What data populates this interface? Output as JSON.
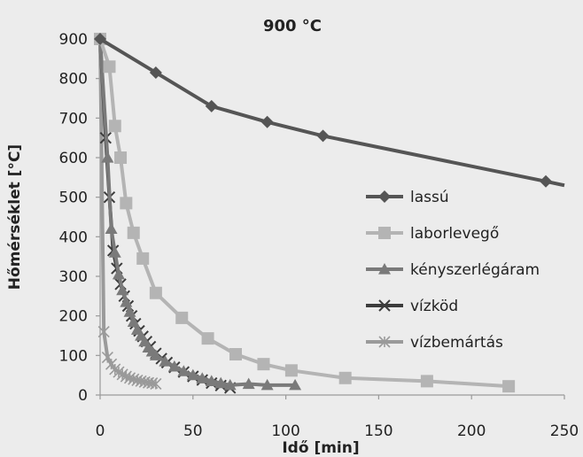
{
  "chart_data": {
    "type": "line",
    "title": "900 °C",
    "xlabel": "Idő [min]",
    "ylabel": "Hőmérséklet [°C]",
    "xlim": [
      0,
      250
    ],
    "ylim": [
      0,
      900
    ],
    "x_ticks": [
      0,
      50,
      100,
      150,
      200,
      250
    ],
    "y_ticks": [
      0,
      100,
      200,
      300,
      400,
      500,
      600,
      700,
      800,
      900
    ],
    "grid": false,
    "legend_position": "right",
    "series": [
      {
        "name": "lassú",
        "color": "#555555",
        "marker": "diamond",
        "x": [
          0,
          30,
          60,
          90,
          120,
          240,
          250
        ],
        "y": [
          900,
          815,
          730,
          690,
          655,
          540,
          530
        ],
        "marker_count": 6
      },
      {
        "name": "laborlevegő",
        "color": "#b4b4b4",
        "marker": "square",
        "x": [
          0,
          5,
          8,
          11,
          14,
          18,
          23,
          30,
          44,
          58,
          73,
          88,
          103,
          132,
          176,
          220
        ],
        "y": [
          900,
          830,
          680,
          600,
          485,
          410,
          345,
          258,
          195,
          143,
          103,
          78,
          62,
          43,
          35,
          22
        ]
      },
      {
        "name": "kényszerlégáram",
        "color": "#7a7a7a",
        "marker": "triangle",
        "x": [
          0,
          4,
          6,
          8,
          10,
          12,
          14,
          16,
          18,
          20,
          22,
          24,
          26,
          28,
          30,
          35,
          40,
          45,
          50,
          55,
          60,
          65,
          70,
          80,
          90,
          105
        ],
        "y": [
          900,
          600,
          420,
          360,
          305,
          265,
          235,
          210,
          185,
          165,
          150,
          135,
          120,
          110,
          100,
          85,
          72,
          60,
          50,
          42,
          35,
          30,
          25,
          28,
          25,
          25
        ]
      },
      {
        "name": "vízköd",
        "color": "#3c3c3c",
        "marker": "x",
        "x": [
          0,
          3,
          5,
          7,
          9,
          11,
          13,
          15,
          17,
          19,
          21,
          23,
          25,
          27,
          30,
          33,
          36,
          40,
          45,
          50,
          55,
          60,
          65,
          70
        ],
        "y": [
          900,
          650,
          500,
          365,
          320,
          280,
          250,
          225,
          200,
          180,
          162,
          148,
          135,
          122,
          105,
          92,
          82,
          70,
          58,
          47,
          38,
          30,
          24,
          18
        ]
      },
      {
        "name": "vízbemártás",
        "color": "#9a9a9a",
        "marker": "asterisk",
        "x": [
          0,
          2,
          4,
          6,
          8,
          10,
          12,
          14,
          16,
          18,
          20,
          22,
          24,
          26,
          28,
          30
        ],
        "y": [
          900,
          160,
          95,
          78,
          65,
          58,
          52,
          47,
          43,
          40,
          37,
          35,
          33,
          31,
          30,
          28
        ]
      }
    ]
  }
}
